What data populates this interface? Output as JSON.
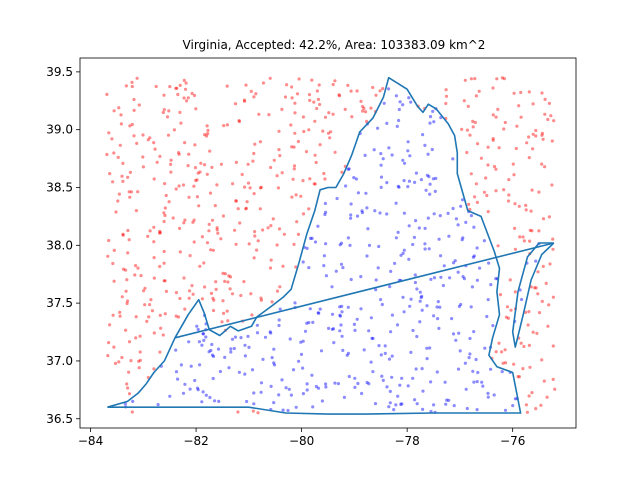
{
  "chart_data": {
    "type": "scatter",
    "title": "Virginia, Accepted: 42.2%, Area: 103383.09 km^2",
    "xlabel": "",
    "ylabel": "",
    "xlim": [
      -84.2,
      -74.8
    ],
    "ylim": [
      36.42,
      39.62
    ],
    "xticks": [
      -84,
      -82,
      -80,
      -78,
      -76
    ],
    "yticks": [
      36.5,
      37.0,
      37.5,
      38.0,
      38.5,
      39.0,
      39.5
    ],
    "xtick_labels": [
      "−84",
      "−82",
      "−80",
      "−78",
      "−76"
    ],
    "ytick_labels": [
      "36.5",
      "37.0",
      "37.5",
      "38.0",
      "38.5",
      "39.0",
      "39.5"
    ],
    "grid": false,
    "sample_bounds": {
      "x": [
        -83.7,
        -75.2
      ],
      "y": [
        36.55,
        39.45
      ]
    },
    "n_points": 1000,
    "accepted_fraction": 0.422,
    "colors": {
      "accepted": "#0000ff",
      "rejected": "#ff0000",
      "outline": "#1f77b4"
    },
    "outline": [
      [
        -83.68,
        36.6
      ],
      [
        -83.3,
        36.65
      ],
      [
        -83.1,
        36.72
      ],
      [
        -82.95,
        36.8
      ],
      [
        -82.8,
        36.9
      ],
      [
        -82.6,
        37.0
      ],
      [
        -82.4,
        37.2
      ],
      [
        -82.15,
        37.4
      ],
      [
        -81.95,
        37.53
      ],
      [
        -81.85,
        37.42
      ],
      [
        -81.75,
        37.27
      ],
      [
        -81.55,
        37.22
      ],
      [
        -81.35,
        37.3
      ],
      [
        -81.2,
        37.26
      ],
      [
        -80.95,
        37.3
      ],
      [
        -80.85,
        37.38
      ],
      [
        -80.55,
        37.48
      ],
      [
        -80.35,
        37.55
      ],
      [
        -80.2,
        37.62
      ],
      [
        -80.05,
        37.85
      ],
      [
        -79.9,
        38.1
      ],
      [
        -79.75,
        38.3
      ],
      [
        -79.65,
        38.48
      ],
      [
        -79.5,
        38.5
      ],
      [
        -79.35,
        38.5
      ],
      [
        -79.2,
        38.62
      ],
      [
        -79.05,
        38.78
      ],
      [
        -78.9,
        38.98
      ],
      [
        -78.65,
        39.1
      ],
      [
        -78.45,
        39.28
      ],
      [
        -78.35,
        39.45
      ],
      [
        -78.0,
        39.35
      ],
      [
        -77.8,
        39.2
      ],
      [
        -77.7,
        39.15
      ],
      [
        -77.6,
        39.22
      ],
      [
        -77.45,
        39.18
      ],
      [
        -77.22,
        39.05
      ],
      [
        -77.1,
        38.95
      ],
      [
        -77.05,
        38.8
      ],
      [
        -77.05,
        38.62
      ],
      [
        -76.85,
        38.3
      ],
      [
        -76.6,
        38.25
      ],
      [
        -76.35,
        37.95
      ],
      [
        -76.25,
        37.8
      ],
      [
        -76.3,
        37.6
      ],
      [
        -76.25,
        37.4
      ],
      [
        -76.38,
        37.2
      ],
      [
        -76.45,
        37.05
      ],
      [
        -76.3,
        36.95
      ],
      [
        -76.0,
        36.9
      ],
      [
        -75.85,
        36.55
      ],
      [
        -76.5,
        36.55
      ],
      [
        -77.5,
        36.55
      ],
      [
        -78.8,
        36.54
      ],
      [
        -79.5,
        36.54
      ],
      [
        -80.3,
        36.55
      ],
      [
        -81.0,
        36.6
      ],
      [
        -81.7,
        36.6
      ],
      [
        -82.3,
        36.6
      ],
      [
        -83.0,
        36.6
      ],
      [
        -83.68,
        36.6
      ]
    ],
    "eastern_shore": [
      [
        -75.22,
        38.02
      ],
      [
        -75.45,
        37.92
      ],
      [
        -75.65,
        37.7
      ],
      [
        -75.8,
        37.4
      ],
      [
        -75.95,
        37.12
      ],
      [
        -76.0,
        37.25
      ],
      [
        -75.9,
        37.6
      ],
      [
        -75.72,
        37.9
      ],
      [
        -75.5,
        38.02
      ],
      [
        -75.22,
        38.02
      ]
    ],
    "closing_segment": [
      [
        -82.4,
        37.2
      ],
      [
        -75.22,
        38.02
      ]
    ]
  }
}
